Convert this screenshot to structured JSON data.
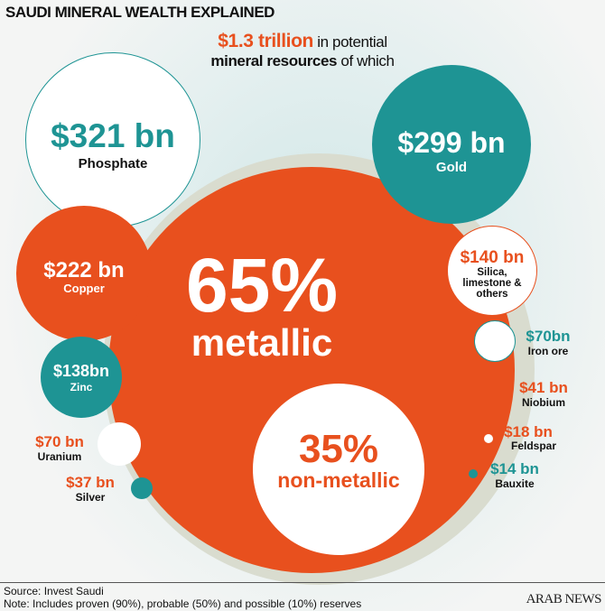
{
  "title": "SAUDI MINERAL WEALTH EXPLAINED",
  "subtitle": {
    "highlight": "$1.3 trillion",
    "rest1": " in potential",
    "bold2": "mineral resources",
    "rest2": " of which"
  },
  "center": {
    "metallic_pct": "65%",
    "metallic_label": "metallic",
    "nonmetallic_pct": "35%",
    "nonmetallic_label": "non-metallic"
  },
  "minerals": [
    {
      "value": "$321 bn",
      "name": "Phosphate"
    },
    {
      "value": "$299 bn",
      "name": "Gold"
    },
    {
      "value": "$222 bn",
      "name": "Copper"
    },
    {
      "value": "$140 bn",
      "name": "Silica, limestone & others"
    },
    {
      "value": "$138bn",
      "name": "Zinc"
    },
    {
      "value": "$70bn",
      "name": "Iron ore"
    },
    {
      "value": "$41 bn",
      "name": "Niobium"
    },
    {
      "value": "$70 bn",
      "name": "Uranium"
    },
    {
      "value": "$18 bn",
      "name": "Feldspar"
    },
    {
      "value": "$14 bn",
      "name": "Bauxite"
    },
    {
      "value": "$37 bn",
      "name": "Silver"
    }
  ],
  "footer": {
    "source": "Source: Invest Saudi",
    "note": "Note: Includes proven (90%), probable (50%) and possible (10%) reserves",
    "logo": "ARAB NEWS"
  },
  "colors": {
    "metallic": "#e8501e",
    "teal": "#1e9494",
    "nonmetallic_ring": "#d9dccf"
  }
}
